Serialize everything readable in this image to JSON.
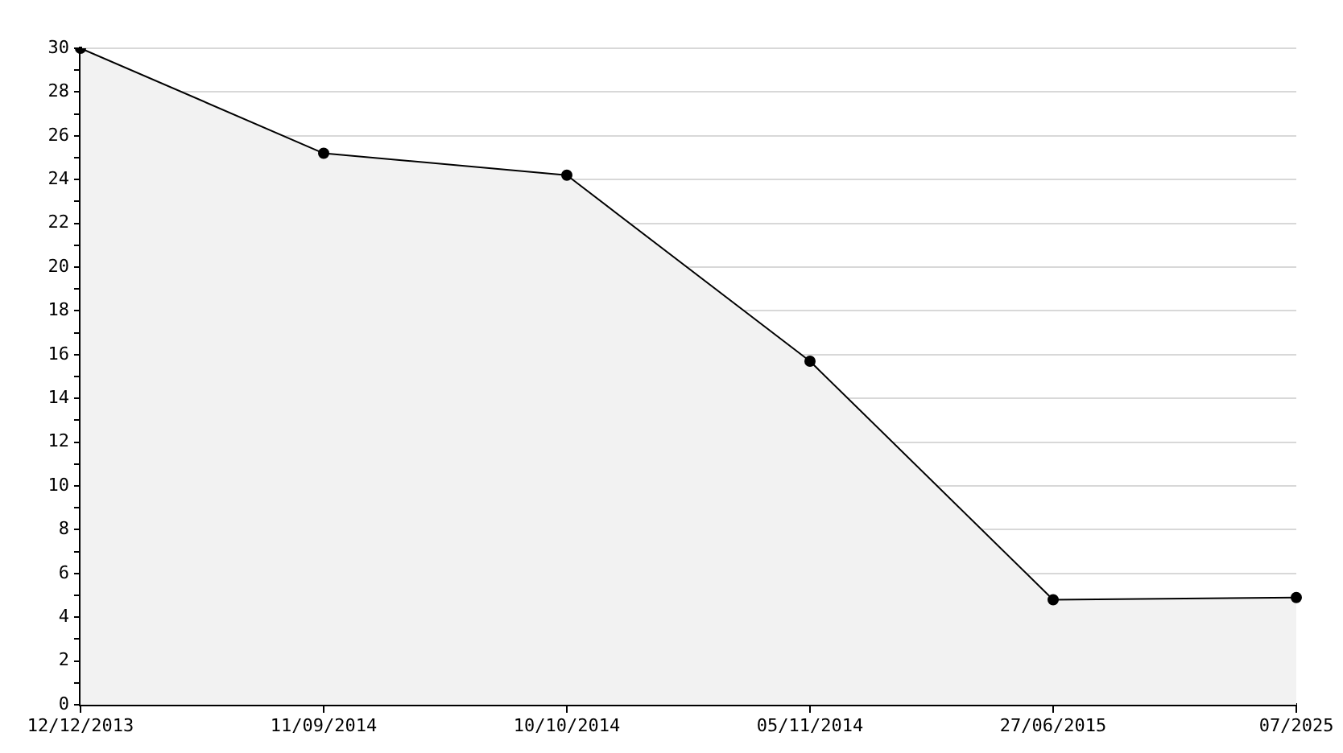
{
  "chart_data": {
    "type": "area",
    "categories": [
      "12/12/2013",
      "11/09/2014",
      "10/10/2014",
      "05/11/2014",
      "27/06/2015",
      "07/2025"
    ],
    "series": [
      {
        "color": "#000000",
        "values": [
          30,
          25.2,
          24.2,
          15.7,
          4.8,
          4.9
        ]
      }
    ],
    "ylim": [
      0,
      30
    ],
    "yticks": [
      0,
      {
        "value": 1,
        "label": null
      },
      2,
      {
        "value": 3,
        "label": null
      },
      4,
      {
        "value": 5,
        "label": null
      },
      6,
      {
        "value": 7,
        "label": null
      },
      8,
      {
        "value": 9,
        "label": null
      },
      10,
      {
        "value": 11,
        "label": null
      },
      12,
      {
        "value": 13,
        "label": null
      },
      14,
      {
        "value": 15,
        "label": null
      },
      16,
      {
        "value": 17,
        "label": null
      },
      18,
      {
        "value": 19,
        "label": null
      },
      20,
      {
        "value": 21,
        "label": null
      },
      22,
      {
        "value": 23,
        "label": null
      },
      24,
      {
        "value": 25,
        "label": null
      },
      26,
      {
        "value": 27,
        "label": null
      },
      28,
      {
        "value": 29,
        "label": null
      },
      30
    ],
    "grid": "y",
    "legend": false,
    "marker": "circle",
    "line_style": "solid"
  }
}
